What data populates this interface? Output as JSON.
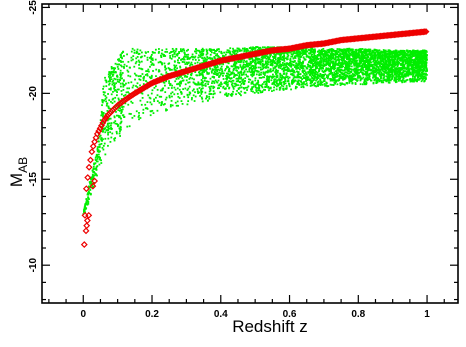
{
  "chart_data": {
    "type": "scatter",
    "title": "",
    "xlabel": "Redshift  z",
    "ylabel_main": "M",
    "ylabel_sub": "AB",
    "xlim": [
      -0.12,
      1.09
    ],
    "ylim": [
      -7.8,
      -25.2
    ],
    "y_inverted": true,
    "grid": false,
    "legend": "none",
    "x_ticks": {
      "major": [
        0,
        0.2,
        0.4,
        0.6,
        0.8,
        1
      ],
      "labels": [
        "0",
        "0.2",
        "0.4",
        "0.6",
        "0.8",
        "1"
      ],
      "minor_step": 0.05
    },
    "y_ticks": {
      "major": [
        -10,
        -15,
        -20,
        -25
      ],
      "labels": [
        "-10",
        "-15",
        "-20",
        "-25"
      ],
      "minor_step": 1
    },
    "series": [
      {
        "color": "#00ee00",
        "marker": "dot",
        "description": "dense band of points between upper envelope near -22.5 and lower envelope near -20.5 at z=1",
        "lower_envelope": [
          [
            0.0,
            -12.8
          ],
          [
            0.02,
            -13.8
          ],
          [
            0.04,
            -15.2
          ],
          [
            0.06,
            -16.3
          ],
          [
            0.08,
            -16.9
          ],
          [
            0.1,
            -17.4
          ],
          [
            0.15,
            -18.2
          ],
          [
            0.2,
            -18.7
          ],
          [
            0.3,
            -19.3
          ],
          [
            0.4,
            -19.7
          ],
          [
            0.5,
            -20.0
          ],
          [
            0.6,
            -20.2
          ],
          [
            0.7,
            -20.4
          ],
          [
            0.8,
            -20.5
          ],
          [
            0.9,
            -20.6
          ],
          [
            1.0,
            -20.7
          ]
        ],
        "upper_envelope": [
          [
            0.0,
            -13.0
          ],
          [
            0.02,
            -15.0
          ],
          [
            0.04,
            -16.6
          ],
          [
            0.06,
            -20.8
          ],
          [
            0.08,
            -21.5
          ],
          [
            0.1,
            -22.0
          ],
          [
            0.12,
            -22.6
          ],
          [
            0.2,
            -22.6
          ],
          [
            0.3,
            -22.6
          ],
          [
            0.4,
            -22.6
          ],
          [
            0.5,
            -22.7
          ],
          [
            0.6,
            -22.7
          ],
          [
            0.7,
            -22.6
          ],
          [
            0.8,
            -22.6
          ],
          [
            0.9,
            -22.5
          ],
          [
            1.0,
            -22.5
          ]
        ]
      },
      {
        "color": "#ee0000",
        "marker": "diamond",
        "description": "limiting magnitude curve, continuous red band",
        "points": [
          [
            0.005,
            -12.9
          ],
          [
            0.008,
            -14.3
          ],
          [
            0.01,
            -14.6
          ],
          [
            0.013,
            -15.1
          ],
          [
            0.016,
            -15.6
          ],
          [
            0.02,
            -16.0
          ],
          [
            0.025,
            -16.6
          ],
          [
            0.03,
            -17.0
          ],
          [
            0.04,
            -17.6
          ],
          [
            0.05,
            -18.0
          ],
          [
            0.06,
            -18.4
          ],
          [
            0.07,
            -18.7
          ],
          [
            0.08,
            -18.9
          ],
          [
            0.1,
            -19.3
          ],
          [
            0.12,
            -19.6
          ],
          [
            0.15,
            -20.0
          ],
          [
            0.2,
            -20.6
          ],
          [
            0.25,
            -21.0
          ],
          [
            0.3,
            -21.3
          ],
          [
            0.35,
            -21.6
          ],
          [
            0.4,
            -21.9
          ],
          [
            0.45,
            -22.1
          ],
          [
            0.5,
            -22.3
          ],
          [
            0.55,
            -22.5
          ],
          [
            0.6,
            -22.6
          ],
          [
            0.65,
            -22.8
          ],
          [
            0.7,
            -22.9
          ],
          [
            0.75,
            -23.1
          ],
          [
            0.8,
            -23.2
          ],
          [
            0.85,
            -23.3
          ],
          [
            0.9,
            -23.4
          ],
          [
            0.95,
            -23.5
          ],
          [
            1.0,
            -23.6
          ]
        ],
        "sparse_low_z_points": [
          [
            0.003,
            -11.2
          ],
          [
            0.008,
            -12.0
          ],
          [
            0.01,
            -12.3
          ],
          [
            0.012,
            -12.6
          ],
          [
            0.016,
            -12.9
          ],
          [
            0.028,
            -14.6
          ],
          [
            0.033,
            -14.9
          ]
        ]
      }
    ]
  }
}
